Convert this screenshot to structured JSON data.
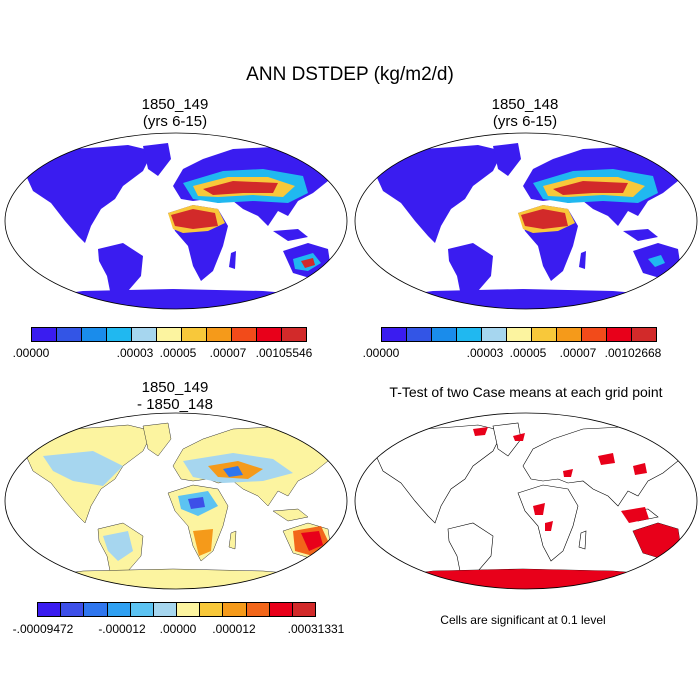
{
  "title": "ANN DSTDEP (kg/m2/d)",
  "panels": [
    {
      "title1": "1850_149",
      "title2": "(yrs 6-15)",
      "colorbar": {
        "colors": [
          "#3a1cf0",
          "#3355e6",
          "#1a8ceb",
          "#20b8f0",
          "#a6d6ef",
          "#fcf4a0",
          "#f8c83a",
          "#f59a1a",
          "#f24b1a",
          "#e8001a",
          "#d22a2a"
        ],
        "labels": [
          ".00000",
          ".00003",
          ".00005",
          ".00007",
          ".00105546"
        ]
      }
    },
    {
      "title1": "1850_148",
      "title2": "(yrs 6-15)",
      "colorbar": {
        "colors": [
          "#3a1cf0",
          "#3355e6",
          "#1a8ceb",
          "#20b8f0",
          "#a6d6ef",
          "#fcf4a0",
          "#f8c83a",
          "#f59a1a",
          "#f24b1a",
          "#e8001a",
          "#d22a2a"
        ],
        "labels": [
          ".00000",
          ".00003",
          ".00005",
          ".00007",
          ".00102668"
        ]
      }
    },
    {
      "title1": "1850_149",
      "title2": "- 1850_148",
      "colorbar": {
        "colors": [
          "#3a1cf0",
          "#3d4fe8",
          "#2f76ee",
          "#2fa0f2",
          "#5cc3f2",
          "#a6d6ef",
          "#fcf4a0",
          "#f8c83a",
          "#f59a1a",
          "#f2661a",
          "#e8001a",
          "#d22a2a"
        ],
        "labels": [
          "-.00009472",
          "-.000012",
          ".00000",
          ".000012",
          ".00031331"
        ]
      }
    },
    {
      "title1": "T-Test of two Case means at each grid point",
      "note": "Cells are significant at 0.1 level"
    }
  ]
}
